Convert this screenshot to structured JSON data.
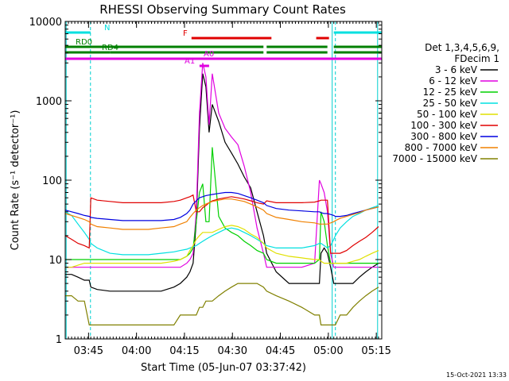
{
  "chart_data": {
    "type": "line",
    "title": "RHESSI Observing Summary Count Rates",
    "xlabel": "Start Time (05-Jun-07 03:37:42)",
    "ylabel": "Count Rate (s⁻¹ detector⁻¹)",
    "y_scale": "log",
    "ylim": [
      1,
      10000
    ],
    "xlim_minutes": [
      0,
      99
    ],
    "x_ticks": [
      {
        "label": "03:45",
        "minute": 7.3
      },
      {
        "label": "04:00",
        "minute": 22.3
      },
      {
        "label": "04:15",
        "minute": 37.3
      },
      {
        "label": "04:30",
        "minute": 52.3
      },
      {
        "label": "04:45",
        "minute": 67.3
      },
      {
        "label": "05:00",
        "minute": 82.3
      },
      {
        "label": "05:15",
        "minute": 97.3
      }
    ],
    "y_ticks": [
      "1",
      "10",
      "100",
      "1000",
      "10000"
    ],
    "legend_header": [
      "Det 1,3,4,5,6,9,",
      "FDecim 1"
    ],
    "timestamp": "15-Oct-2021 13:33",
    "flags": [
      {
        "label": "N",
        "color": "#00e0e0",
        "segments": [
          [
            0,
            7.9
          ],
          [
            84,
            99
          ]
        ]
      },
      {
        "label": "F",
        "color": "#e00000",
        "segments": [
          [
            39.5,
            64.5
          ],
          [
            78.5,
            82.5
          ]
        ]
      },
      {
        "label": "RD0",
        "color": "#008000",
        "segments": [
          [
            0,
            14
          ],
          [
            14,
            62
          ],
          [
            63,
            82
          ],
          [
            84,
            99
          ]
        ]
      },
      {
        "label": "RD4",
        "color": "#008000",
        "segments": [
          [
            0,
            14
          ],
          [
            14,
            62
          ],
          [
            63,
            82
          ],
          [
            84,
            99
          ]
        ]
      },
      {
        "label": "A1",
        "color": "#e000e0",
        "segments": [
          [
            42,
            45
          ]
        ]
      },
      {
        "label": "A0",
        "color": "#e000e0",
        "segments": [
          [
            0,
            99
          ]
        ]
      }
    ],
    "eclipse_lines_minutes": [
      7.9,
      84.5
    ],
    "saa_lines_minutes": [
      0.3,
      83.5,
      97.7
    ],
    "x": [
      0,
      2,
      4,
      6,
      7.5,
      8,
      10,
      14,
      18,
      22,
      26,
      30,
      34,
      36,
      38,
      39,
      40,
      41,
      42,
      43,
      44,
      45,
      46,
      48,
      50,
      52,
      54,
      56,
      58,
      60,
      62,
      63,
      66,
      70,
      74,
      78,
      79.5,
      80,
      81,
      82,
      83,
      84,
      84.5,
      86,
      88,
      90,
      92,
      94,
      96,
      98
    ],
    "series": [
      {
        "name": "3 - 6 keV",
        "color": "#000000",
        "values": [
          6.5,
          6.5,
          6,
          5.5,
          5.5,
          4.5,
          4.2,
          4,
          4,
          4,
          4,
          4,
          4.5,
          5,
          6,
          7,
          9,
          30,
          450,
          2200,
          1500,
          400,
          900,
          550,
          300,
          220,
          160,
          110,
          80,
          40,
          20,
          12,
          7,
          5,
          5,
          5,
          5,
          12,
          14,
          12,
          8,
          5,
          5,
          5,
          5,
          5,
          6,
          7,
          8,
          9
        ]
      },
      {
        "name": "6 - 12 keV",
        "color": "#e000e0",
        "values": [
          8,
          8,
          8,
          8,
          8,
          8,
          8,
          8,
          8,
          8,
          8,
          8,
          8,
          8,
          9,
          10,
          12,
          40,
          700,
          3000,
          2000,
          500,
          2200,
          700,
          450,
          350,
          280,
          150,
          70,
          25,
          12,
          8,
          8,
          8,
          8,
          9,
          100,
          90,
          70,
          40,
          12,
          8,
          8,
          8,
          8,
          8,
          8,
          8,
          8,
          8
        ]
      },
      {
        "name": "12 - 25 keV",
        "color": "#00d000",
        "values": [
          10,
          10,
          10,
          10,
          10,
          10,
          10,
          10,
          10,
          10,
          10,
          10,
          10,
          10,
          11,
          12,
          14,
          30,
          70,
          90,
          30,
          30,
          260,
          35,
          25,
          22,
          20,
          17,
          15,
          13,
          12,
          10,
          9,
          9,
          9,
          9,
          10,
          40,
          30,
          15,
          9,
          9,
          9,
          9,
          9,
          9,
          9,
          9,
          9,
          9
        ]
      },
      {
        "name": "25 - 50 keV",
        "color": "#00e0e0",
        "values": [
          40,
          36,
          28,
          22,
          18,
          16,
          14,
          12,
          11.5,
          11.5,
          11.5,
          12,
          12.5,
          13,
          13.5,
          14,
          14.5,
          15,
          16,
          17,
          18,
          19,
          20,
          22,
          24,
          25,
          24,
          22,
          20,
          18,
          16,
          15,
          14,
          14,
          14,
          15,
          16,
          16,
          15,
          14,
          15,
          18,
          20,
          25,
          30,
          35,
          38,
          42,
          45,
          48
        ]
      },
      {
        "name": "50 - 100 keV",
        "color": "#e0e000",
        "values": [
          8,
          8,
          8.5,
          9,
          9,
          9,
          9,
          9,
          9,
          9,
          9,
          9,
          9.5,
          10,
          11,
          13,
          15,
          18,
          20,
          22,
          22,
          22,
          22,
          24,
          26,
          27,
          26,
          24,
          21,
          19,
          16,
          14,
          12,
          11,
          10.5,
          10,
          10,
          9.5,
          9,
          9,
          9,
          9,
          9,
          9,
          9,
          9.5,
          10,
          11,
          12,
          13
        ]
      },
      {
        "name": "100 - 300 keV",
        "color": "#e00000",
        "values": [
          20,
          18,
          16,
          15,
          14,
          60,
          56,
          54,
          52,
          52,
          52,
          52,
          54,
          56,
          60,
          62,
          65,
          40,
          40,
          45,
          48,
          52,
          55,
          58,
          60,
          62,
          60,
          58,
          55,
          52,
          50,
          55,
          52,
          52,
          52,
          53,
          55,
          56,
          56,
          56,
          12,
          12,
          12,
          12,
          13,
          15,
          17,
          19,
          22,
          26
        ]
      },
      {
        "name": "300 - 800 keV",
        "color": "#0000e0",
        "values": [
          42,
          40,
          38,
          36,
          35,
          34,
          33,
          32,
          31,
          31,
          31,
          31,
          32,
          34,
          38,
          42,
          50,
          55,
          60,
          62,
          64,
          65,
          66,
          68,
          70,
          70,
          68,
          64,
          60,
          56,
          52,
          48,
          44,
          42,
          41,
          40,
          40,
          39,
          38,
          38,
          37,
          36,
          35,
          35,
          36,
          38,
          40,
          42,
          44,
          46
        ]
      },
      {
        "name": "800 - 7000 keV",
        "color": "#f08000",
        "values": [
          38,
          36,
          34,
          32,
          30,
          28,
          26,
          25,
          24,
          24,
          24,
          25,
          26,
          28,
          30,
          34,
          38,
          42,
          45,
          48,
          50,
          52,
          54,
          56,
          58,
          58,
          56,
          54,
          50,
          46,
          42,
          38,
          34,
          32,
          30,
          29,
          28,
          28,
          28,
          28,
          29,
          30,
          31,
          33,
          35,
          37,
          39,
          42,
          44,
          46
        ]
      },
      {
        "name": "7000 - 15000 keV",
        "color": "#808000",
        "values": [
          3.5,
          3.5,
          3,
          3,
          1.5,
          1.5,
          1.5,
          1.5,
          1.5,
          1.5,
          1.5,
          1.5,
          1.5,
          2,
          2,
          2,
          2,
          2,
          2.5,
          2.5,
          3,
          3,
          3,
          3.5,
          4,
          4.5,
          5,
          5,
          5,
          5,
          4.5,
          4,
          3.5,
          3,
          2.5,
          2,
          2,
          1.5,
          1.5,
          1.5,
          1.5,
          1.5,
          1.5,
          2,
          2,
          2.5,
          3,
          3.5,
          4,
          4.5
        ]
      }
    ]
  }
}
